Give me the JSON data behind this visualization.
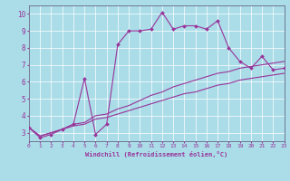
{
  "xlabel": "Windchill (Refroidissement éolien,°C)",
  "bg_color": "#aadde8",
  "line_color": "#993399",
  "grid_color": "#ffffff",
  "xmin": 0,
  "xmax": 23,
  "ymin": 2.5,
  "ymax": 10.5,
  "line1_x": [
    0,
    1,
    2,
    3,
    4,
    5,
    6,
    7,
    8,
    9,
    10,
    11,
    12,
    13,
    14,
    15,
    16,
    17,
    18,
    19,
    20,
    21,
    22,
    23
  ],
  "line1_y": [
    3.3,
    2.7,
    2.9,
    3.2,
    3.5,
    6.2,
    2.9,
    3.5,
    8.2,
    9.0,
    9.0,
    9.1,
    10.1,
    9.1,
    9.3,
    9.3,
    9.1,
    9.6,
    8.0,
    7.2,
    6.8,
    7.5,
    6.7,
    6.8
  ],
  "line2_x": [
    0,
    1,
    2,
    3,
    4,
    5,
    6,
    7,
    8,
    9,
    10,
    11,
    12,
    13,
    14,
    15,
    16,
    17,
    18,
    19,
    20,
    21,
    22,
    23
  ],
  "line2_y": [
    3.3,
    2.8,
    3.0,
    3.2,
    3.4,
    3.5,
    3.8,
    3.9,
    4.1,
    4.3,
    4.5,
    4.7,
    4.9,
    5.1,
    5.3,
    5.4,
    5.6,
    5.8,
    5.9,
    6.1,
    6.2,
    6.3,
    6.4,
    6.5
  ],
  "line3_x": [
    0,
    1,
    2,
    3,
    4,
    5,
    6,
    7,
    8,
    9,
    10,
    11,
    12,
    13,
    14,
    15,
    16,
    17,
    18,
    19,
    20,
    21,
    22,
    23
  ],
  "line3_y": [
    3.3,
    2.8,
    3.0,
    3.2,
    3.5,
    3.6,
    4.0,
    4.1,
    4.4,
    4.6,
    4.9,
    5.2,
    5.4,
    5.7,
    5.9,
    6.1,
    6.3,
    6.5,
    6.6,
    6.8,
    6.9,
    7.0,
    7.1,
    7.2
  ],
  "yticks": [
    3,
    4,
    5,
    6,
    7,
    8,
    9,
    10
  ],
  "xticks": [
    0,
    1,
    2,
    3,
    4,
    5,
    6,
    7,
    8,
    9,
    10,
    11,
    12,
    13,
    14,
    15,
    16,
    17,
    18,
    19,
    20,
    21,
    22,
    23
  ]
}
